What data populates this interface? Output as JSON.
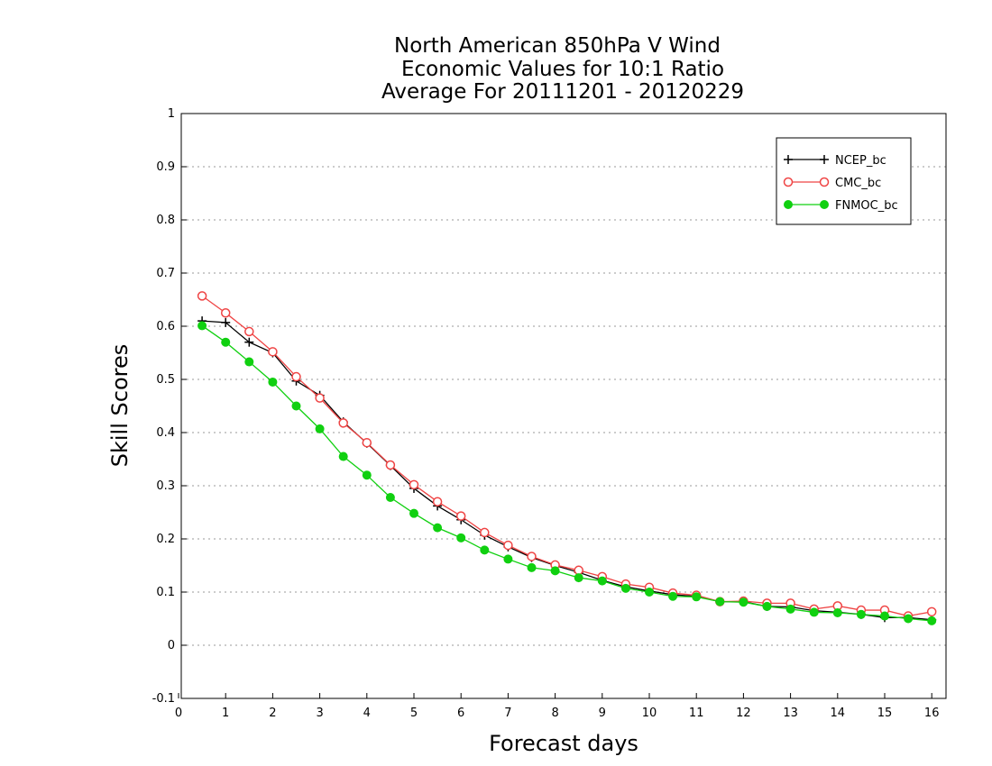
{
  "chart_data": {
    "type": "line",
    "title": [
      "North American 850hPa V Wind",
      "Economic Values for 10:1 Ratio",
      "Average For 20111201 - 20120229"
    ],
    "xlabel": "Forecast days",
    "ylabel": "Skill Scores",
    "xlim": [
      0,
      16.25
    ],
    "ylim": [
      -0.1,
      1
    ],
    "xticks": [
      0,
      1,
      2,
      3,
      4,
      5,
      6,
      7,
      8,
      9,
      10,
      11,
      12,
      13,
      14,
      15,
      16
    ],
    "yticks": [
      -0.1,
      0,
      0.1,
      0.2,
      0.3,
      0.4,
      0.5,
      0.6,
      0.7,
      0.8,
      0.9,
      1
    ],
    "ytick_labels": [
      "-0.1",
      "0",
      "0.1",
      "0.2",
      "0.3",
      "0.4",
      "0.5",
      "0.6",
      "0.7",
      "0.8",
      "0.9",
      "1"
    ],
    "grid": "horizontal dotted",
    "legend_position": "top-right",
    "x": [
      0.5,
      1,
      1.5,
      2,
      2.5,
      3,
      3.5,
      4,
      4.5,
      5,
      5.5,
      6,
      6.5,
      7,
      7.5,
      8,
      8.5,
      9,
      9.5,
      10,
      10.5,
      11,
      11.5,
      12,
      12.5,
      13,
      13.5,
      14,
      14.5,
      15,
      15.5,
      16
    ],
    "series": [
      {
        "name": "NCEP_bc",
        "color": "#000000",
        "marker": "plus",
        "values": [
          0.61,
          0.607,
          0.57,
          0.55,
          0.497,
          0.47,
          0.42,
          0.38,
          0.338,
          0.295,
          0.262,
          0.236,
          0.207,
          0.185,
          0.165,
          0.15,
          0.137,
          0.122,
          0.11,
          0.102,
          0.095,
          0.092,
          0.082,
          0.082,
          0.073,
          0.072,
          0.065,
          0.062,
          0.058,
          0.052,
          0.052,
          0.048
        ]
      },
      {
        "name": "CMC_bc",
        "color": "#ef4444",
        "marker": "open-circle",
        "values": [
          0.657,
          0.625,
          0.59,
          0.552,
          0.505,
          0.465,
          0.418,
          0.381,
          0.339,
          0.302,
          0.27,
          0.243,
          0.212,
          0.188,
          0.167,
          0.151,
          0.141,
          0.129,
          0.115,
          0.109,
          0.098,
          0.094,
          0.082,
          0.083,
          0.079,
          0.079,
          0.068,
          0.074,
          0.066,
          0.066,
          0.055,
          0.063
        ]
      },
      {
        "name": "FNMOC_bc",
        "color": "#10d010",
        "marker": "filled-circle",
        "values": [
          0.601,
          0.57,
          0.533,
          0.495,
          0.45,
          0.407,
          0.355,
          0.32,
          0.278,
          0.248,
          0.221,
          0.202,
          0.179,
          0.162,
          0.146,
          0.14,
          0.127,
          0.121,
          0.107,
          0.1,
          0.092,
          0.091,
          0.082,
          0.081,
          0.073,
          0.068,
          0.062,
          0.061,
          0.058,
          0.055,
          0.05,
          0.046
        ]
      }
    ]
  }
}
